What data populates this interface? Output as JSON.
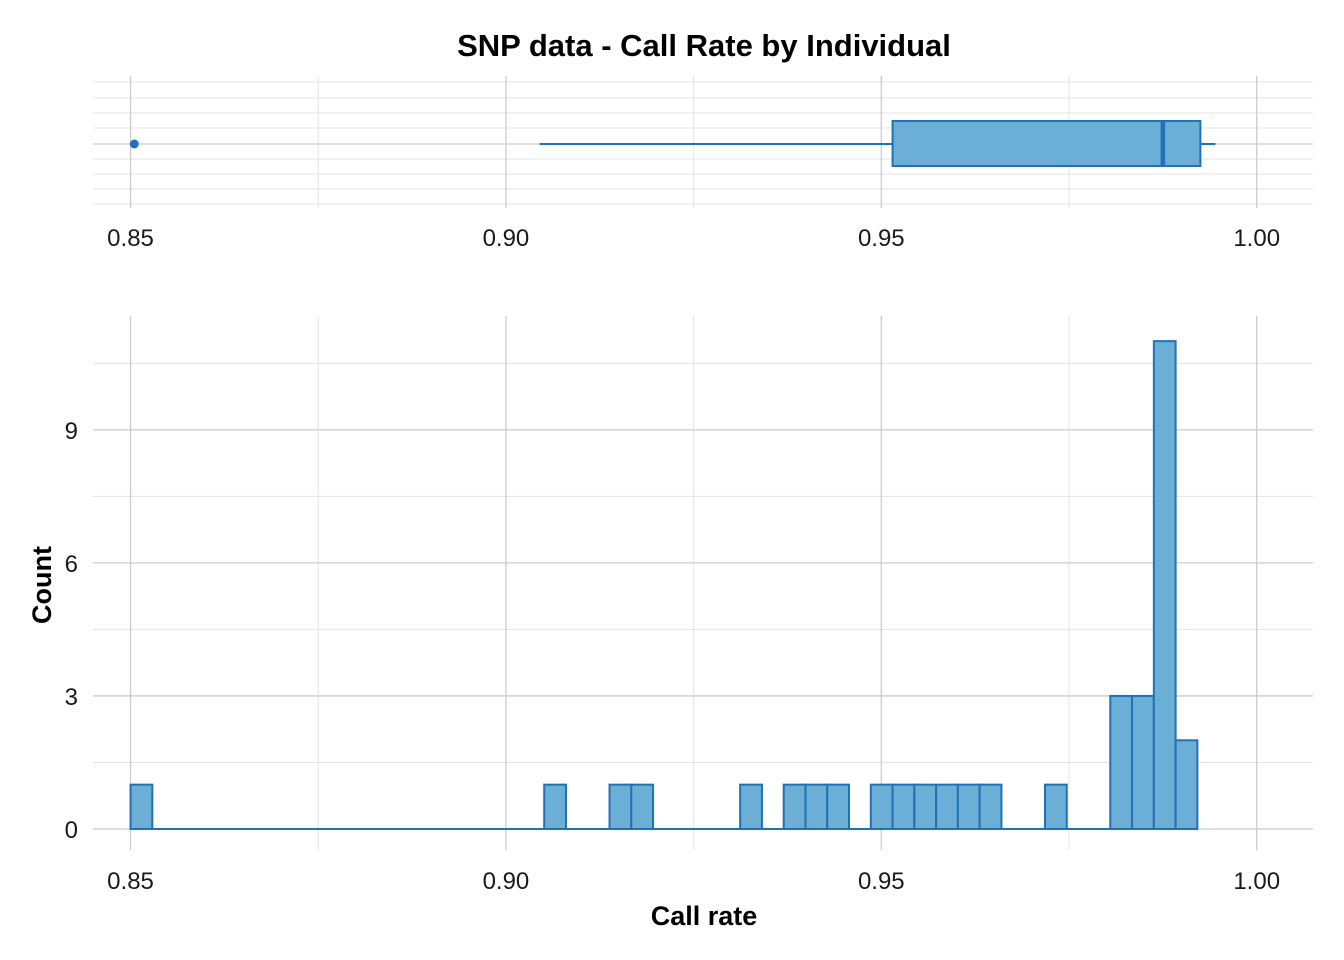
{
  "chart_data": [
    {
      "type": "box",
      "title": "SNP data - Call Rate by Individual",
      "xlim": [
        0.845,
        1.0075
      ],
      "xticks": [
        "0.85",
        "0.90",
        "0.95",
        "1.00"
      ],
      "xtick_values": [
        0.85,
        0.9,
        0.95,
        1.0
      ],
      "min": 0.9045,
      "q1": 0.9515,
      "median": 0.9875,
      "q3": 0.9925,
      "max": 0.9945,
      "outliers": [
        0.8505
      ],
      "grid": true,
      "colors": {
        "fill": "#6BAED6",
        "stroke": "#2171B5",
        "grid": "#CCCCCC"
      }
    },
    {
      "type": "bar",
      "xlabel": "Call rate",
      "ylabel": "Count",
      "xlim": [
        0.845,
        1.0075
      ],
      "ylim": [
        -0.3,
        11.6
      ],
      "xticks": [
        "0.85",
        "0.90",
        "0.95",
        "1.00"
      ],
      "xtick_values": [
        0.85,
        0.9,
        0.95,
        1.0
      ],
      "yticks": [
        "0",
        "3",
        "6",
        "9"
      ],
      "ytick_values": [
        0,
        3,
        6,
        9
      ],
      "bin_start": 0.85,
      "bin_width": 0.0029,
      "counts": [
        1,
        0,
        0,
        0,
        0,
        0,
        0,
        0,
        0,
        0,
        0,
        0,
        0,
        0,
        0,
        0,
        0,
        0,
        0,
        1,
        0,
        0,
        1,
        1,
        0,
        0,
        0,
        0,
        1,
        0,
        1,
        1,
        1,
        0,
        1,
        1,
        1,
        1,
        1,
        1,
        0,
        0,
        1,
        0,
        0,
        3,
        3,
        11,
        2
      ],
      "grid": true,
      "colors": {
        "fill": "#6BAED6",
        "stroke": "#2171B5",
        "grid": "#CCCCCC"
      }
    }
  ]
}
